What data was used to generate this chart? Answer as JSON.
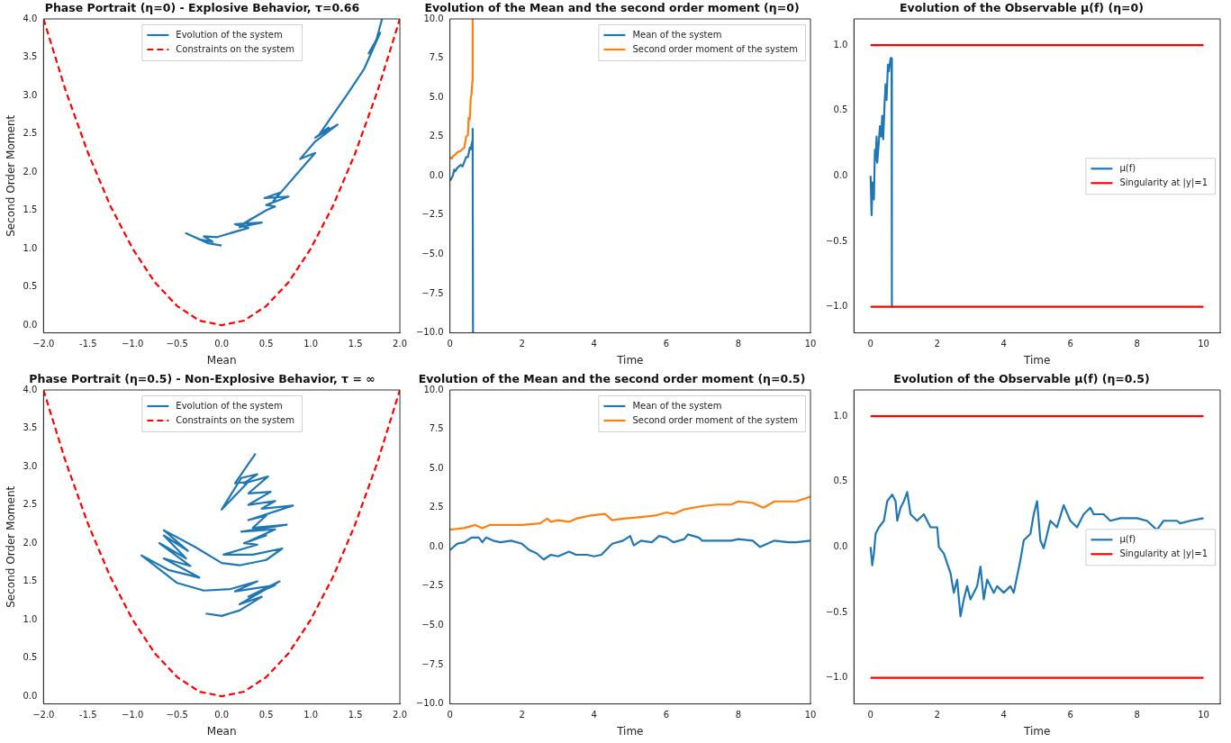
{
  "chart_data": [
    {
      "type": "line",
      "title": "Phase Portrait (η=0) - Explosive Behavior, τ=0.66",
      "xlabel": "Mean",
      "ylabel": "Second Order Moment",
      "xlim": [
        -2,
        2
      ],
      "ylim": [
        -0.1,
        4
      ],
      "xticks": [
        {
          "value": -2,
          "label": "−2.0"
        },
        -1.5,
        {
          "value": -1,
          "label": "−1.0"
        },
        {
          "value": -0.5,
          "label": "−0.5"
        },
        {
          "value": 0,
          "label": "0.0"
        },
        0.5,
        {
          "value": 1,
          "label": "1.0"
        },
        1.5,
        {
          "value": 2,
          "label": "2.0"
        }
      ],
      "yticks": [
        {
          "value": 0,
          "label": "0.0"
        },
        0.5,
        {
          "value": 1,
          "label": "1.0"
        },
        1.5,
        {
          "value": 2,
          "label": "2.0"
        },
        2.5,
        {
          "value": 3,
          "label": "3.0"
        },
        3.5,
        {
          "value": 4,
          "label": "4.0"
        }
      ],
      "grid": false,
      "legend": "top",
      "marker": "none",
      "series": [
        {
          "name": "Evolution of the system",
          "color": "#1f77b4",
          "line_style": "solid",
          "x": [
            0.0,
            -0.15,
            -0.4,
            -0.25,
            -0.1,
            -0.2,
            -0.05,
            0.15,
            0.3,
            0.15,
            0.45,
            0.2,
            0.35,
            0.25,
            0.5,
            0.6,
            0.5,
            0.75,
            0.48,
            0.65,
            0.58,
            0.9,
            1.05,
            0.88,
            1.05,
            1.3,
            1.05,
            1.2,
            1.1,
            1.4,
            1.6,
            1.78,
            1.65,
            1.73,
            1.8
          ],
          "values": [
            1.04,
            1.07,
            1.2,
            1.12,
            1.09,
            1.16,
            1.15,
            1.22,
            1.27,
            1.32,
            1.34,
            1.28,
            1.4,
            1.33,
            1.5,
            1.55,
            1.57,
            1.68,
            1.66,
            1.73,
            1.62,
            2.05,
            2.25,
            2.17,
            2.4,
            2.62,
            2.45,
            2.58,
            2.5,
            3.0,
            3.35,
            3.82,
            3.55,
            3.7,
            4.0
          ]
        },
        {
          "name": "Constraints on the system",
          "color": "#ff0000",
          "line_style": "dashed",
          "x": [
            -2,
            -1.75,
            -1.5,
            -1.25,
            -1,
            -0.75,
            -0.5,
            -0.25,
            0,
            0.25,
            0.5,
            0.75,
            1,
            1.25,
            1.5,
            1.75,
            2
          ],
          "values": [
            4,
            3.06,
            2.25,
            1.56,
            1,
            0.56,
            0.25,
            0.06,
            0,
            0.06,
            0.25,
            0.56,
            1,
            1.56,
            2.25,
            3.06,
            4
          ]
        }
      ]
    },
    {
      "type": "line",
      "title": "Evolution of the Mean and the second order moment (η=0)",
      "xlabel": "Time",
      "xlim": [
        0,
        10
      ],
      "ylim": [
        -10,
        10
      ],
      "xticks": [
        0,
        2,
        4,
        6,
        8,
        10
      ],
      "yticks": [
        {
          "value": -10,
          "label": "−10.0"
        },
        {
          "value": -7.5,
          "label": "−7.5"
        },
        {
          "value": -5,
          "label": "−5.0"
        },
        {
          "value": -2.5,
          "label": "−2.5"
        },
        {
          "value": 0,
          "label": "0.0"
        },
        2.5,
        {
          "value": 5,
          "label": "5.0"
        },
        7.5,
        {
          "value": 10,
          "label": "10.0"
        }
      ],
      "grid": false,
      "legend": "top right",
      "marker": "none",
      "series": [
        {
          "name": "Mean of the system",
          "color": "#1f77b4",
          "line_style": "solid",
          "x": [
            0,
            0.03,
            0.08,
            0.12,
            0.15,
            0.2,
            0.25,
            0.3,
            0.35,
            0.4,
            0.45,
            0.5,
            0.55,
            0.58,
            0.6,
            0.62,
            0.63,
            0.64
          ],
          "values": [
            -0.3,
            -0.2,
            0.0,
            0.4,
            0.3,
            0.5,
            0.6,
            0.7,
            0.6,
            0.9,
            1.2,
            1.2,
            1.8,
            1.7,
            2.0,
            2.2,
            3.0,
            -10
          ]
        },
        {
          "name": "Second order moment of the system",
          "color": "#ff7f0e",
          "line_style": "solid",
          "x": [
            0,
            0.05,
            0.1,
            0.15,
            0.2,
            0.3,
            0.4,
            0.45,
            0.5,
            0.52,
            0.55,
            0.58,
            0.6,
            0.62,
            0.63
          ],
          "values": [
            1.2,
            1.1,
            1.3,
            1.35,
            1.5,
            1.6,
            1.8,
            2.5,
            2.6,
            3.7,
            3.6,
            5.0,
            5.2,
            6.0,
            10
          ]
        }
      ]
    },
    {
      "type": "line",
      "title": "Evolution of the Observable μ(f) (η=0)",
      "xlabel": "Time",
      "xlim": [
        -0.5,
        10.5
      ],
      "ylim": [
        -1.2,
        1.2
      ],
      "xticks": [
        0,
        2,
        4,
        6,
        8,
        10
      ],
      "yticks": [
        {
          "value": -1,
          "label": "−1.0"
        },
        {
          "value": -0.5,
          "label": "−0.5"
        },
        {
          "value": 0,
          "label": "0.0"
        },
        0.5,
        {
          "value": 1,
          "label": "1.0"
        }
      ],
      "grid": false,
      "legend": "right",
      "marker": "none",
      "series": [
        {
          "name": "Singularity at |y|=1",
          "color": "#ff0000",
          "line_style": "solid",
          "x": [
            0,
            10
          ],
          "values": [
            1,
            1
          ]
        },
        {
          "color": "#ff0000",
          "line_style": "solid",
          "x": [
            0,
            10
          ],
          "values": [
            -1,
            -1
          ]
        },
        {
          "name": "μ(f)",
          "color": "#1f77b4",
          "line_style": "solid",
          "x": [
            0,
            0.03,
            0.06,
            0.1,
            0.13,
            0.15,
            0.18,
            0.2,
            0.25,
            0.28,
            0.32,
            0.35,
            0.38,
            0.42,
            0.45,
            0.48,
            0.52,
            0.55,
            0.6,
            0.63,
            0.64
          ],
          "values": [
            0,
            -0.3,
            -0.05,
            -0.18,
            0.2,
            0.12,
            0.3,
            0.1,
            0.27,
            0.38,
            0.3,
            0.46,
            0.28,
            0.55,
            0.7,
            0.58,
            0.85,
            0.8,
            0.9,
            0.9,
            -1.0
          ]
        }
      ]
    },
    {
      "type": "line",
      "title": "Phase Portrait (η=0.5) - Non-Explosive Behavior, τ = ∞",
      "xlabel": "Mean",
      "ylabel": "Second Order Moment",
      "xlim": [
        -2,
        2
      ],
      "ylim": [
        -0.1,
        4
      ],
      "xticks": [
        {
          "value": -2,
          "label": "−2.0"
        },
        -1.5,
        {
          "value": -1,
          "label": "−1.0"
        },
        {
          "value": -0.5,
          "label": "−0.5"
        },
        {
          "value": 0,
          "label": "0.0"
        },
        0.5,
        {
          "value": 1,
          "label": "1.0"
        },
        1.5,
        {
          "value": 2,
          "label": "2.0"
        }
      ],
      "yticks": [
        {
          "value": 0,
          "label": "0.0"
        },
        0.5,
        {
          "value": 1,
          "label": "1.0"
        },
        1.5,
        {
          "value": 2,
          "label": "2.0"
        },
        2.5,
        {
          "value": 3,
          "label": "3.0"
        },
        3.5,
        {
          "value": 4,
          "label": "4.0"
        }
      ],
      "grid": false,
      "legend": "top",
      "marker": "none",
      "series": [
        {
          "name": "Evolution of the system",
          "color": "#1f77b4",
          "line_style": "solid",
          "x": [
            -0.18,
            0.0,
            0.2,
            0.45,
            0.2,
            0.65,
            0.3,
            0.6,
            0.15,
            0.4,
            0.1,
            -0.2,
            -0.5,
            -0.9,
            -0.6,
            -0.25,
            -0.65,
            -0.35,
            -0.7,
            -0.4,
            -0.65,
            -0.38,
            -0.65,
            -0.3,
            0.0,
            0.2,
            0.5,
            0.68,
            0.35,
            0.02,
            0.4,
            0.25,
            0.5,
            0.3,
            0.6,
            0.22,
            0.73,
            0.35,
            0.5,
            0.3,
            0.8,
            0.45,
            0.6,
            0.3,
            0.55,
            0.3,
            0.52,
            0.25,
            0.4,
            0.22,
            0.0,
            0.3,
            0.15,
            0.38
          ],
          "values": [
            1.08,
            1.05,
            1.12,
            1.3,
            1.2,
            1.5,
            1.3,
            1.45,
            1.37,
            1.5,
            1.4,
            1.38,
            1.48,
            1.84,
            1.65,
            1.55,
            1.8,
            1.7,
            2.0,
            1.8,
            2.1,
            1.9,
            2.17,
            1.95,
            1.74,
            1.71,
            1.78,
            1.93,
            1.85,
            1.85,
            1.98,
            2.0,
            2.1,
            2.02,
            2.18,
            2.15,
            2.24,
            2.2,
            2.36,
            2.3,
            2.49,
            2.45,
            2.55,
            2.5,
            2.67,
            2.65,
            2.87,
            2.78,
            2.9,
            2.85,
            2.44,
            2.8,
            2.78,
            3.17
          ]
        },
        {
          "name": "Constraints on the system",
          "color": "#ff0000",
          "line_style": "dashed",
          "x": [
            -2,
            -1.75,
            -1.5,
            -1.25,
            -1,
            -0.75,
            -0.5,
            -0.25,
            0,
            0.25,
            0.5,
            0.75,
            1,
            1.25,
            1.5,
            1.75,
            2
          ],
          "values": [
            4,
            3.06,
            2.25,
            1.56,
            1,
            0.56,
            0.25,
            0.06,
            0,
            0.06,
            0.25,
            0.56,
            1,
            1.56,
            2.25,
            3.06,
            4
          ]
        }
      ]
    },
    {
      "type": "line",
      "title": "Evolution of the Mean and the second order moment (η=0.5)",
      "xlabel": "Time",
      "xlim": [
        0,
        10
      ],
      "ylim": [
        -10,
        10
      ],
      "xticks": [
        0,
        2,
        4,
        6,
        8,
        10
      ],
      "yticks": [
        {
          "value": -10,
          "label": "−10.0"
        },
        {
          "value": -7.5,
          "label": "−7.5"
        },
        {
          "value": -5,
          "label": "−5.0"
        },
        {
          "value": -2.5,
          "label": "−2.5"
        },
        {
          "value": 0,
          "label": "0.0"
        },
        2.5,
        {
          "value": 5,
          "label": "5.0"
        },
        7.5,
        {
          "value": 10,
          "label": "10.0"
        }
      ],
      "grid": false,
      "legend": "top right",
      "marker": "none",
      "series": [
        {
          "name": "Mean of the system",
          "color": "#1f77b4",
          "line_style": "solid",
          "x": [
            0,
            0.2,
            0.4,
            0.6,
            0.8,
            0.9,
            1.0,
            1.2,
            1.4,
            1.7,
            2.0,
            2.2,
            2.4,
            2.6,
            2.8,
            3.0,
            3.3,
            3.5,
            3.8,
            4.0,
            4.2,
            4.5,
            4.8,
            5.0,
            5.1,
            5.3,
            5.6,
            5.8,
            6.0,
            6.2,
            6.5,
            6.6,
            6.9,
            7.0,
            7.4,
            7.8,
            8.0,
            8.4,
            8.6,
            8.8,
            9.0,
            9.4,
            9.6,
            10
          ],
          "values": [
            -0.2,
            0.2,
            0.3,
            0.6,
            0.6,
            0.3,
            0.6,
            0.4,
            0.3,
            0.4,
            0.2,
            -0.2,
            -0.4,
            -0.8,
            -0.5,
            -0.6,
            -0.3,
            -0.5,
            -0.5,
            -0.6,
            -0.5,
            0.2,
            0.4,
            0.7,
            0.1,
            0.4,
            0.3,
            0.7,
            0.6,
            0.3,
            0.5,
            0.8,
            0.6,
            0.4,
            0.4,
            0.4,
            0.5,
            0.4,
            0.0,
            0.2,
            0.4,
            0.3,
            0.3,
            0.4
          ]
        },
        {
          "name": "Second order moment of the system",
          "color": "#ff7f0e",
          "line_style": "solid",
          "x": [
            0,
            0.4,
            0.7,
            0.9,
            1.1,
            1.5,
            2.0,
            2.5,
            2.7,
            2.8,
            3.0,
            3.3,
            3.5,
            3.9,
            4.3,
            4.5,
            4.8,
            5.3,
            5.7,
            6.0,
            6.2,
            6.5,
            7.0,
            7.4,
            7.8,
            8.0,
            8.4,
            8.7,
            9.0,
            9.4,
            9.6,
            10
          ],
          "values": [
            1.1,
            1.2,
            1.4,
            1.2,
            1.4,
            1.4,
            1.4,
            1.5,
            1.8,
            1.6,
            1.7,
            1.6,
            1.8,
            2.0,
            2.1,
            1.7,
            1.8,
            1.9,
            2.0,
            2.2,
            2.1,
            2.4,
            2.6,
            2.7,
            2.7,
            2.9,
            2.8,
            2.5,
            2.9,
            2.9,
            2.9,
            3.2
          ]
        }
      ]
    },
    {
      "type": "line",
      "title": "Evolution of the Observable μ(f) (η=0.5)",
      "xlabel": "Time",
      "xlim": [
        -0.5,
        10.5
      ],
      "ylim": [
        -1.2,
        1.2
      ],
      "xticks": [
        0,
        2,
        4,
        6,
        8,
        10
      ],
      "yticks": [
        {
          "value": -1,
          "label": "−1.0"
        },
        {
          "value": -0.5,
          "label": "−0.5"
        },
        {
          "value": 0,
          "label": "0.0"
        },
        0.5,
        {
          "value": 1,
          "label": "1.0"
        }
      ],
      "grid": false,
      "legend": "right",
      "marker": "none",
      "series": [
        {
          "name": "Singularity at |y|=1",
          "color": "#ff0000",
          "line_style": "solid",
          "x": [
            0,
            10
          ],
          "values": [
            1,
            1
          ]
        },
        {
          "color": "#ff0000",
          "line_style": "solid",
          "x": [
            0,
            10
          ],
          "values": [
            -1,
            -1
          ]
        },
        {
          "name": "μ(f)",
          "color": "#1f77b4",
          "line_style": "solid",
          "x": [
            0,
            0.05,
            0.1,
            0.15,
            0.25,
            0.4,
            0.5,
            0.65,
            0.75,
            0.8,
            0.9,
            1.0,
            1.1,
            1.2,
            1.4,
            1.6,
            1.8,
            2.0,
            2.05,
            2.2,
            2.4,
            2.5,
            2.6,
            2.7,
            2.8,
            2.9,
            3.0,
            3.1,
            3.2,
            3.3,
            3.4,
            3.5,
            3.7,
            3.8,
            4.0,
            4.2,
            4.3,
            4.5,
            4.6,
            4.8,
            4.9,
            5.0,
            5.1,
            5.2,
            5.4,
            5.6,
            5.8,
            6.0,
            6.2,
            6.4,
            6.6,
            6.7,
            7.0,
            7.2,
            7.5,
            8.0,
            8.3,
            8.6,
            8.8,
            9.2,
            9.3,
            9.6,
            10
          ],
          "values": [
            0,
            -0.14,
            -0.05,
            0.1,
            0.15,
            0.2,
            0.35,
            0.4,
            0.35,
            0.2,
            0.3,
            0.35,
            0.42,
            0.25,
            0.2,
            0.25,
            0.15,
            0.15,
            0.0,
            -0.05,
            -0.2,
            -0.35,
            -0.25,
            -0.53,
            -0.4,
            -0.3,
            -0.4,
            -0.35,
            -0.3,
            -0.15,
            -0.4,
            -0.25,
            -0.35,
            -0.3,
            -0.35,
            -0.3,
            -0.35,
            -0.1,
            0.05,
            0.1,
            0.25,
            0.35,
            0.05,
            -0.01,
            0.2,
            0.15,
            0.32,
            0.2,
            0.15,
            0.25,
            0.3,
            0.25,
            0.25,
            0.2,
            0.22,
            0.22,
            0.2,
            0.13,
            0.2,
            0.2,
            0.18,
            0.2,
            0.22
          ]
        }
      ]
    }
  ]
}
